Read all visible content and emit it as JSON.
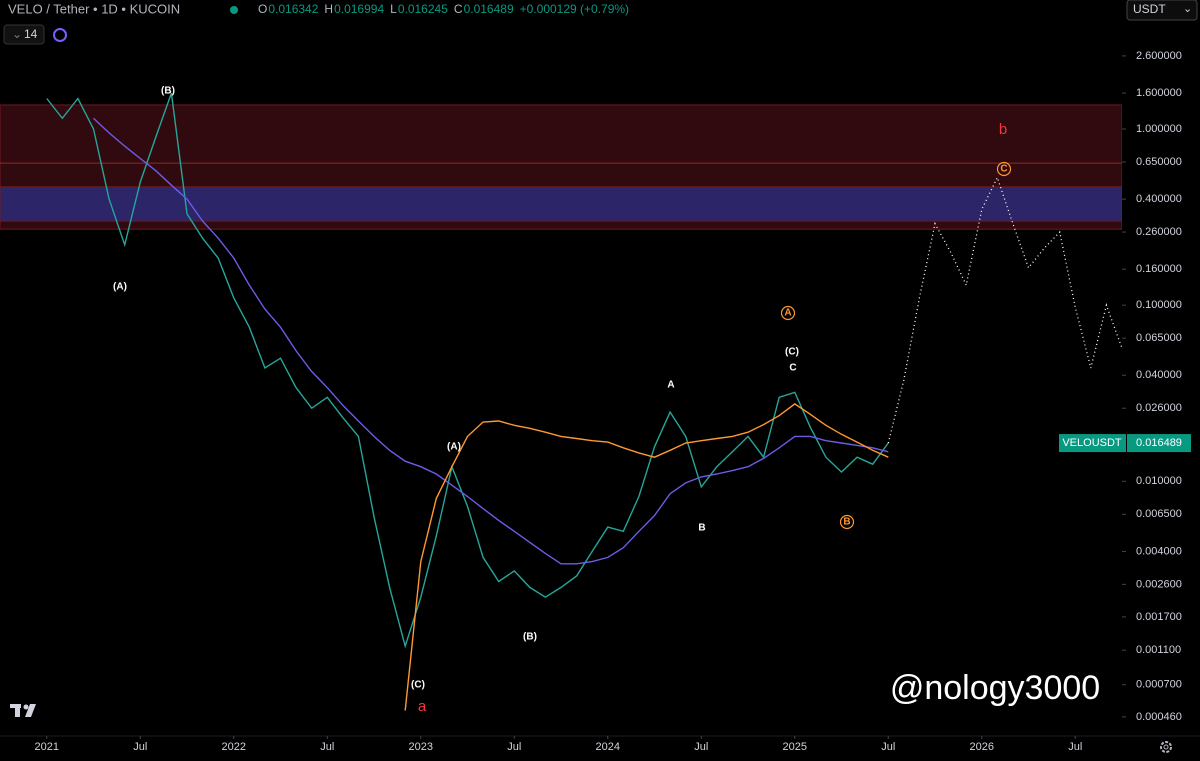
{
  "header": {
    "symbol": "VELO / Tether • 1D • KUCOIN",
    "ohlc": [
      {
        "label": "O",
        "value": 0.016342
      },
      {
        "label": "H",
        "value": 0.016994
      },
      {
        "label": "L",
        "value": 0.016245
      },
      {
        "label": "C",
        "value": 0.016489
      }
    ],
    "change": "+0.000129 (+0.79%)",
    "indicator_length": 14,
    "currency": "USDT"
  },
  "chart_data": {
    "type": "line",
    "log_scale": true,
    "grid": false,
    "x": [
      "2021-01",
      "2021-02",
      "2021-03",
      "2021-04",
      "2021-05",
      "2021-06",
      "2021-07",
      "2021-08",
      "2021-09",
      "2021-10",
      "2021-11",
      "2021-12",
      "2022-01",
      "2022-02",
      "2022-03",
      "2022-04",
      "2022-05",
      "2022-06",
      "2022-07",
      "2022-08",
      "2022-09",
      "2022-10",
      "2022-11",
      "2022-12",
      "2023-01",
      "2023-02",
      "2023-03",
      "2023-04",
      "2023-05",
      "2023-06",
      "2023-07",
      "2023-08",
      "2023-09",
      "2023-10",
      "2023-11",
      "2023-12",
      "2024-01",
      "2024-02",
      "2024-03",
      "2024-04",
      "2024-05",
      "2024-06",
      "2024-07",
      "2024-08",
      "2024-09",
      "2024-10",
      "2024-11",
      "2024-12",
      "2025-01",
      "2025-02",
      "2025-03",
      "2025-04",
      "2025-05",
      "2025-06",
      "2025-07",
      "2025-08",
      "2025-09",
      "2025-10",
      "2025-11",
      "2025-12",
      "2026-01",
      "2026-02",
      "2026-03",
      "2026-04",
      "2026-05",
      "2026-06",
      "2026-07",
      "2026-08",
      "2026-09",
      "2026-10"
    ],
    "series": [
      {
        "color": "#26a69a",
        "style": "solid",
        "values": [
          1.49,
          1.15,
          1.49,
          1.0,
          0.4,
          0.22,
          0.5,
          0.9,
          1.6,
          0.33,
          0.24,
          0.185,
          0.11,
          0.075,
          0.044,
          0.05,
          0.034,
          0.026,
          0.03,
          0.023,
          0.018,
          0.0063,
          0.0025,
          0.00116,
          0.0022,
          0.0049,
          0.0121,
          0.0072,
          0.0037,
          0.0027,
          0.0031,
          0.0025,
          0.0022,
          0.0025,
          0.0029,
          0.004,
          0.0055,
          0.0052,
          0.0082,
          0.0157,
          0.0247,
          0.018,
          0.0093,
          0.0121,
          0.0147,
          0.018,
          0.0137,
          0.03,
          0.032,
          0.0203,
          0.0137,
          0.0113,
          0.0137,
          0.0125,
          0.0165,
          null,
          null,
          null,
          null,
          null,
          null,
          null,
          null,
          null,
          null,
          null,
          null,
          null,
          null,
          null
        ]
      },
      {
        "color": "#6c5ce7",
        "style": "solid",
        "values": [
          null,
          null,
          null,
          1.15,
          0.95,
          0.8,
          0.68,
          0.58,
          0.48,
          0.4,
          0.3,
          0.24,
          0.185,
          0.13,
          0.095,
          0.075,
          0.055,
          0.042,
          0.034,
          0.027,
          0.022,
          0.018,
          0.015,
          0.013,
          0.0121,
          0.011,
          0.0095,
          0.0082,
          0.007,
          0.006,
          0.0052,
          0.0045,
          0.0039,
          0.0034,
          0.0034,
          0.0035,
          0.0037,
          0.0042,
          0.0052,
          0.0064,
          0.0085,
          0.0098,
          0.0106,
          0.011,
          0.0115,
          0.0121,
          0.0135,
          0.0155,
          0.018,
          0.018,
          0.017,
          0.0165,
          0.016,
          0.0155,
          0.0147,
          null,
          null,
          null,
          null,
          null,
          null,
          null,
          null,
          null,
          null,
          null,
          null,
          null,
          null,
          null
        ]
      },
      {
        "color": "#ff9830",
        "style": "solid",
        "values": [
          null,
          null,
          null,
          null,
          null,
          null,
          null,
          null,
          null,
          null,
          null,
          null,
          null,
          null,
          null,
          null,
          null,
          null,
          null,
          null,
          null,
          null,
          null,
          0.0005,
          0.0035,
          0.008,
          0.0121,
          0.018,
          0.0217,
          0.022,
          0.0208,
          0.02,
          0.019,
          0.018,
          0.0175,
          0.017,
          0.0167,
          0.0155,
          0.0145,
          0.0137,
          0.015,
          0.0165,
          0.017,
          0.0175,
          0.018,
          0.019,
          0.021,
          0.0236,
          0.0275,
          0.024,
          0.0208,
          0.0185,
          0.0167,
          0.015,
          0.0137,
          null,
          null,
          null,
          null,
          null,
          null,
          null,
          null,
          null,
          null,
          null,
          null,
          null,
          null,
          null
        ]
      },
      {
        "color": "#ffffff",
        "style": "dotted",
        "values": [
          null,
          null,
          null,
          null,
          null,
          null,
          null,
          null,
          null,
          null,
          null,
          null,
          null,
          null,
          null,
          null,
          null,
          null,
          null,
          null,
          null,
          null,
          null,
          null,
          null,
          null,
          null,
          null,
          null,
          null,
          null,
          null,
          null,
          null,
          null,
          null,
          null,
          null,
          null,
          null,
          null,
          null,
          null,
          null,
          null,
          null,
          null,
          null,
          null,
          null,
          null,
          null,
          null,
          null,
          0.0165,
          0.0375,
          0.11,
          0.29,
          0.2,
          0.13,
          0.35,
          0.53,
          0.29,
          0.163,
          0.21,
          0.26,
          0.097,
          0.044,
          0.1,
          0.057
        ]
      }
    ],
    "zones": [
      {
        "from": 0.27,
        "to": 1.37,
        "color": "#3a0c12"
      },
      {
        "from": 0.3,
        "to": 0.47,
        "color": "#2b2a78"
      }
    ],
    "levels": [
      0.64
    ],
    "xlim": [
      "2020-10",
      "2026-10"
    ],
    "ylim": [
      0.00034,
      5.4
    ],
    "xticks": [
      {
        "value": "2021-01",
        "label": "2021"
      },
      {
        "value": "2021-07",
        "label": "Jul"
      },
      {
        "value": "2022-01",
        "label": "2022"
      },
      {
        "value": "2022-07",
        "label": "Jul"
      },
      {
        "value": "2023-01",
        "label": "2023"
      },
      {
        "value": "2023-07",
        "label": "Jul"
      },
      {
        "value": "2024-01",
        "label": "2024"
      },
      {
        "value": "2024-07",
        "label": "Jul"
      },
      {
        "value": "2025-01",
        "label": "2025"
      },
      {
        "value": "2025-07",
        "label": "Jul"
      },
      {
        "value": "2026-01",
        "label": "2026"
      },
      {
        "value": "2026-07",
        "label": "Jul"
      }
    ],
    "yticks": [
      {
        "value": 2.6,
        "label": "2.600000"
      },
      {
        "value": 1.6,
        "label": "1.600000"
      },
      {
        "value": 1,
        "label": "1.000000"
      },
      {
        "value": 0.65,
        "label": "0.650000"
      },
      {
        "value": 0.4,
        "label": "0.400000"
      },
      {
        "value": 0.26,
        "label": "0.260000"
      },
      {
        "value": 0.16,
        "label": "0.160000"
      },
      {
        "value": 0.1,
        "label": "0.100000"
      },
      {
        "value": 0.065,
        "label": "0.065000"
      },
      {
        "value": 0.04,
        "label": "0.040000"
      },
      {
        "value": 0.026,
        "label": "0.026000"
      },
      {
        "value": 0.01,
        "label": "0.010000"
      },
      {
        "value": 0.0065,
        "label": "0.006500"
      },
      {
        "value": 0.004,
        "label": "0.004000"
      },
      {
        "value": 0.0026,
        "label": "0.002600"
      },
      {
        "value": 0.0017,
        "label": "0.001700"
      },
      {
        "value": 0.0011,
        "label": "0.001100"
      },
      {
        "value": 0.0007,
        "label": "0.000700"
      },
      {
        "value": 0.00046,
        "label": "0.000460"
      }
    ],
    "last_price_symbol": "VELOUSDT",
    "last_price": 0.016489,
    "annotations": [
      "(B)",
      "(A)",
      "(A)",
      "(C)",
      "a",
      "(B)",
      "A",
      "B",
      "(C)",
      "C",
      "A",
      "B",
      "b",
      "C"
    ],
    "watermark": "@nology3000"
  }
}
